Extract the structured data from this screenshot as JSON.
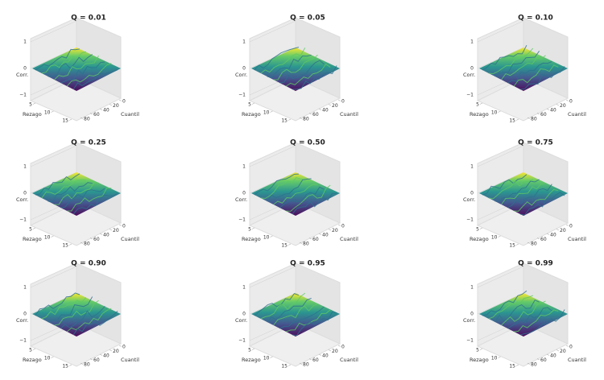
{
  "chart_data": [
    {
      "type": "surface",
      "title": "Q = 0.01",
      "zlabel": "Corr.",
      "xlabel": "Rezago",
      "ylabel": "Cuantil",
      "zticks": [
        1,
        0,
        {
          "value": -1,
          "label": "−1"
        }
      ],
      "xticks": [
        5,
        10,
        15
      ],
      "yticks": [
        0,
        20,
        40,
        60,
        80
      ]
    },
    {
      "type": "surface",
      "title": "Q = 0.05",
      "zlabel": "Corr.",
      "xlabel": "Rezago",
      "ylabel": "Cuantil",
      "zticks": [
        1,
        0,
        {
          "value": -1,
          "label": "−1"
        }
      ],
      "xticks": [
        5,
        10,
        15
      ],
      "yticks": [
        0,
        20,
        40,
        60,
        80
      ]
    },
    {
      "type": "surface",
      "title": "Q = 0.10",
      "zlabel": "Corr.",
      "xlabel": "Rezago",
      "ylabel": "Cuantil",
      "zticks": [
        1,
        0,
        {
          "value": -1,
          "label": "−1"
        }
      ],
      "xticks": [
        5,
        10,
        15
      ],
      "yticks": [
        0,
        20,
        40,
        60,
        80
      ]
    },
    {
      "type": "surface",
      "title": "Q = 0.25",
      "zlabel": "Corr.",
      "xlabel": "Rezago",
      "ylabel": "Cuantil",
      "zticks": [
        1,
        0,
        {
          "value": -1,
          "label": "−1"
        }
      ],
      "xticks": [
        5,
        10,
        15
      ],
      "yticks": [
        0,
        20,
        40,
        60,
        80
      ]
    },
    {
      "type": "surface",
      "title": "Q = 0.50",
      "zlabel": "Corr.",
      "xlabel": "Rezago",
      "ylabel": "Cuantil",
      "zticks": [
        1,
        0,
        {
          "value": -1,
          "label": "−1"
        }
      ],
      "xticks": [
        5,
        10,
        15
      ],
      "yticks": [
        0,
        20,
        40,
        60,
        80
      ]
    },
    {
      "type": "surface",
      "title": "Q = 0.75",
      "zlabel": "Corr.",
      "xlabel": "Rezago",
      "ylabel": "Cuantil",
      "zticks": [
        1,
        0,
        {
          "value": -1,
          "label": "−1"
        }
      ],
      "xticks": [
        5,
        10,
        15
      ],
      "yticks": [
        0,
        20,
        40,
        60,
        80
      ]
    },
    {
      "type": "surface",
      "title": "Q = 0.90",
      "zlabel": "Corr.",
      "xlabel": "Rezago",
      "ylabel": "Cuantil",
      "zticks": [
        1,
        0,
        {
          "value": -1,
          "label": "−1"
        }
      ],
      "xticks": [
        5,
        10,
        15
      ],
      "yticks": [
        0,
        20,
        40,
        60,
        80
      ]
    },
    {
      "type": "surface",
      "title": "Q = 0.95",
      "zlabel": "Corr.",
      "xlabel": "Rezago",
      "ylabel": "Cuantil",
      "zticks": [
        1,
        0,
        {
          "value": -1,
          "label": "−1"
        }
      ],
      "xticks": [
        5,
        10,
        15
      ],
      "yticks": [
        0,
        20,
        40,
        60,
        80
      ]
    },
    {
      "type": "surface",
      "title": "Q = 0.99",
      "zlabel": "Corr.",
      "xlabel": "Rezago",
      "ylabel": "Cuantil",
      "zticks": [
        1,
        0,
        {
          "value": -1,
          "label": "−1"
        }
      ],
      "xticks": [
        5,
        10,
        15
      ],
      "yticks": [
        0,
        20,
        40,
        60,
        80
      ]
    }
  ]
}
